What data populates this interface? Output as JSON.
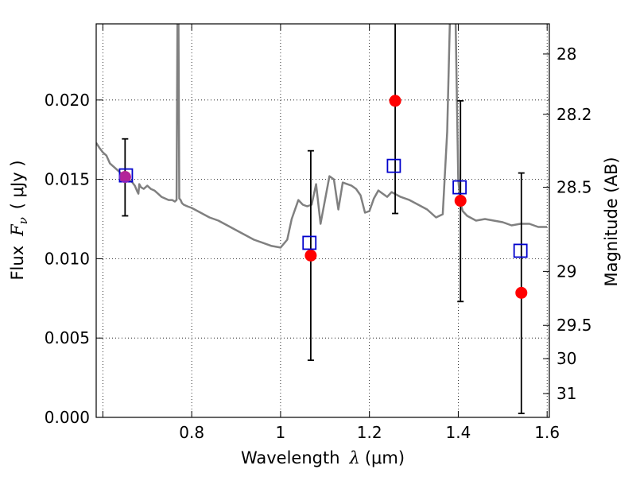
{
  "chart_data": {
    "type": "scatter",
    "xlabel_text": "Wavelength",
    "xlabel_symbol": "λ",
    "xlabel_unit": "(μm)",
    "ylabel_text": "Flux",
    "ylabel_symbol": "F",
    "ylabel_sub": "ν",
    "ylabel_unit": "( μJy )",
    "y2label": "Magnitude (AB)",
    "xlim": [
      0.585,
      1.605
    ],
    "ylim": [
      0.0,
      0.0248
    ],
    "grid": true,
    "grid_style": "dotted",
    "xticks": [
      0.6,
      0.8,
      1.0,
      1.2,
      1.4,
      1.6
    ],
    "xtick_labels": [
      "",
      "0.8",
      "1",
      "1.2",
      "1.4",
      "1.6"
    ],
    "yticks": [
      0.0,
      0.005,
      0.01,
      0.015,
      0.02
    ],
    "ytick_labels": [
      "0.000",
      "0.005",
      "0.010",
      "0.015",
      "0.020"
    ],
    "y2ticks": [
      {
        "label": "28",
        "flux": 0.0229
      },
      {
        "label": "28.2",
        "flux": 0.0191
      },
      {
        "label": "28.5",
        "flux": 0.0145
      },
      {
        "label": "29",
        "flux": 0.0092
      },
      {
        "label": "29.5",
        "flux": 0.0058
      },
      {
        "label": "30",
        "flux": 0.0037
      },
      {
        "label": "31",
        "flux": 0.0015
      }
    ],
    "colors": {
      "model": "#808080",
      "observed": "#ff0000",
      "model_photometry": "#0000cc",
      "errorbar": "#000000",
      "overlap": "#9933cc"
    },
    "series": [
      {
        "kind": "model-spectrum",
        "x": [
          0.585,
          0.592,
          0.6,
          0.608,
          0.616,
          0.624,
          0.632,
          0.64,
          0.648,
          0.656,
          0.664,
          0.672,
          0.678,
          0.68,
          0.682,
          0.686,
          0.692,
          0.7,
          0.708,
          0.716,
          0.724,
          0.732,
          0.74,
          0.748,
          0.756,
          0.762,
          0.766,
          0.768,
          0.77,
          0.772,
          0.775,
          0.778,
          0.782,
          0.79,
          0.8,
          0.82,
          0.84,
          0.86,
          0.88,
          0.9,
          0.92,
          0.94,
          0.96,
          0.98,
          1.0,
          1.015,
          1.025,
          1.04,
          1.05,
          1.06,
          1.07,
          1.08,
          1.09,
          1.1,
          1.11,
          1.12,
          1.13,
          1.14,
          1.15,
          1.16,
          1.17,
          1.18,
          1.19,
          1.2,
          1.21,
          1.22,
          1.23,
          1.24,
          1.25,
          1.27,
          1.29,
          1.31,
          1.33,
          1.35,
          1.365,
          1.375,
          1.382,
          1.388,
          1.394,
          1.4,
          1.405,
          1.41,
          1.42,
          1.44,
          1.46,
          1.48,
          1.5,
          1.52,
          1.54,
          1.56,
          1.58,
          1.6
        ],
        "y": [
          0.0173,
          0.017,
          0.0167,
          0.0165,
          0.016,
          0.0158,
          0.0156,
          0.0154,
          0.0152,
          0.015,
          0.0149,
          0.0146,
          0.0142,
          0.0141,
          0.0147,
          0.0145,
          0.0144,
          0.0146,
          0.0144,
          0.0143,
          0.0141,
          0.0139,
          0.0138,
          0.0137,
          0.0137,
          0.0136,
          0.0137,
          0.026,
          0.026,
          0.0138,
          0.0137,
          0.0135,
          0.0134,
          0.0133,
          0.0132,
          0.0129,
          0.0126,
          0.0124,
          0.0121,
          0.0118,
          0.0115,
          0.0112,
          0.011,
          0.0108,
          0.0107,
          0.0112,
          0.0125,
          0.0137,
          0.0134,
          0.0133,
          0.0134,
          0.0147,
          0.0122,
          0.0137,
          0.0152,
          0.015,
          0.0131,
          0.0148,
          0.0147,
          0.0146,
          0.0144,
          0.014,
          0.0129,
          0.013,
          0.0138,
          0.0143,
          0.0141,
          0.0139,
          0.0142,
          0.0139,
          0.0137,
          0.0134,
          0.0131,
          0.0126,
          0.0128,
          0.018,
          0.026,
          0.026,
          0.025,
          0.015,
          0.0135,
          0.013,
          0.0127,
          0.0124,
          0.0125,
          0.0124,
          0.0123,
          0.0121,
          0.0122,
          0.0122,
          0.012,
          0.012
        ]
      },
      {
        "kind": "observed",
        "marker": "circle",
        "x": [
          0.65,
          1.068,
          1.258,
          1.405,
          1.542
        ],
        "y": [
          0.01515,
          0.0102,
          0.01995,
          0.01365,
          0.00785
        ],
        "yerr_low": [
          0.0127,
          0.0036,
          0.01285,
          0.0073,
          0.00025
        ],
        "yerr_high": [
          0.01755,
          0.0168,
          0.0248,
          0.01995,
          0.0154
        ]
      },
      {
        "kind": "model-photometry",
        "marker": "square",
        "x": [
          0.652,
          1.065,
          1.255,
          1.403,
          1.54
        ],
        "y": [
          0.01525,
          0.011,
          0.01585,
          0.0145,
          0.0105
        ]
      }
    ]
  }
}
